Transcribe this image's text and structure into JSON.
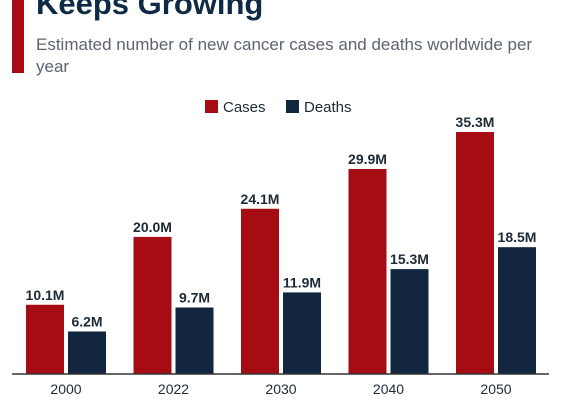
{
  "header": {
    "title": "Keeps Growing",
    "subtitle": "Estimated number of new cancer cases and deaths worldwide per year"
  },
  "colors": {
    "accent": "#a50c14",
    "cases": "#a50c14",
    "deaths": "#13263f",
    "axis": "#333333"
  },
  "chart_data": {
    "type": "bar",
    "title": "Keeps Growing",
    "subtitle": "Estimated number of new cancer cases and deaths worldwide per year",
    "categories": [
      "2000",
      "2022",
      "2030",
      "2040",
      "2050"
    ],
    "series": [
      {
        "name": "Cases",
        "values": [
          10.1,
          20.0,
          24.1,
          29.9,
          35.3
        ],
        "labels": [
          "10.1M",
          "20.0M",
          "24.1M",
          "29.9M",
          "35.3M"
        ]
      },
      {
        "name": "Deaths",
        "values": [
          6.2,
          9.7,
          11.9,
          15.3,
          18.5
        ],
        "labels": [
          "6.2M",
          "9.7M",
          "11.9M",
          "15.3M",
          "18.5M"
        ]
      }
    ],
    "xlabel": "",
    "ylabel": "",
    "ylim": [
      0,
      35.3
    ],
    "grid": false,
    "legend": "top-center"
  }
}
